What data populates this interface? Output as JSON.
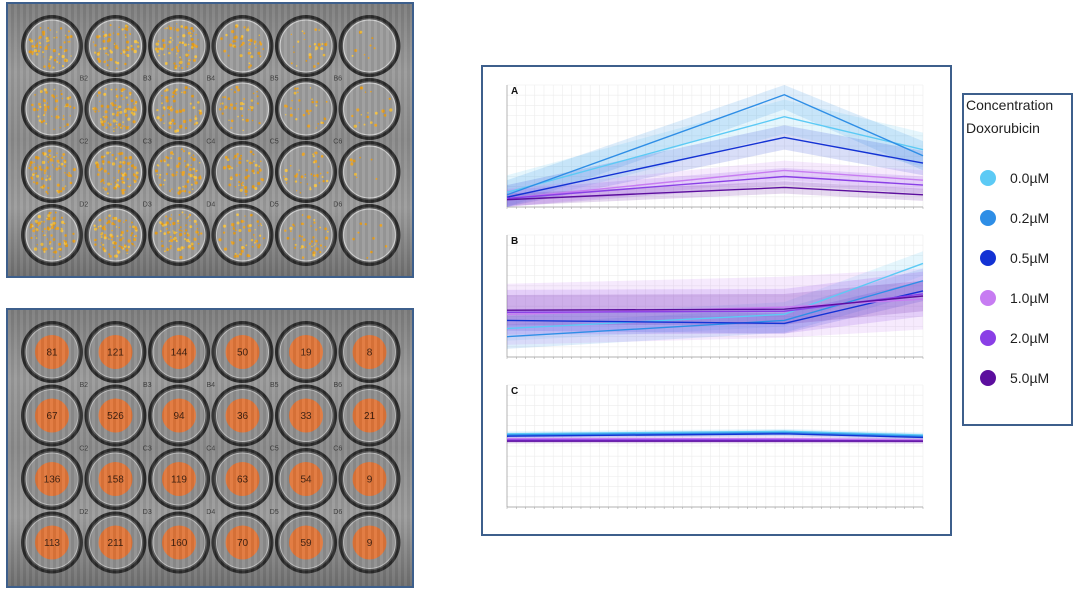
{
  "plates": {
    "top": {
      "name": "overlay",
      "rows": 4,
      "cols": 6,
      "colony_density": [
        [
          0.8,
          0.85,
          0.9,
          0.5,
          0.3,
          0.1
        ],
        [
          0.6,
          1.0,
          0.7,
          0.45,
          0.35,
          0.2
        ],
        [
          0.9,
          0.9,
          0.8,
          0.6,
          0.45,
          0.1
        ],
        [
          0.85,
          0.95,
          0.9,
          0.6,
          0.5,
          0.1
        ]
      ],
      "well_labels": [
        [
          "B2",
          "B3",
          "B4",
          "B5",
          "B6"
        ],
        [
          "C2",
          "C3",
          "C4",
          "C5",
          "C6"
        ],
        [
          "D2",
          "D3",
          "D4",
          "D5",
          "D6"
        ]
      ]
    },
    "bottom": {
      "name": "counts",
      "rows": 4,
      "cols": 6,
      "counts": [
        [
          "81",
          "121",
          "144",
          "50",
          "19",
          "8"
        ],
        [
          "67",
          "526",
          "94",
          "36",
          "33",
          "21"
        ],
        [
          "136",
          "158",
          "119",
          "63",
          "54",
          "9"
        ],
        [
          "113",
          "211",
          "160",
          "70",
          "59",
          "9"
        ]
      ],
      "well_labels": [
        [
          "B2",
          "B3",
          "B4",
          "B5",
          "B6"
        ],
        [
          "C2",
          "C3",
          "C4",
          "C5",
          "C6"
        ],
        [
          "D2",
          "D3",
          "D4",
          "D5",
          "D6"
        ]
      ]
    }
  },
  "legend": {
    "title_line1": "Concentration",
    "title_line2": "Doxorubicin",
    "items": [
      {
        "label": "0.0µM",
        "color": "#5ccaf5"
      },
      {
        "label": "0.2µM",
        "color": "#2e8ee6"
      },
      {
        "label": "0.5µM",
        "color": "#1332d4"
      },
      {
        "label": "1.0µM",
        "color": "#c77cf2"
      },
      {
        "label": "2.0µM",
        "color": "#8a3fe6"
      },
      {
        "label": "5.0µM",
        "color": "#5c0e9e"
      }
    ]
  },
  "chart_data": [
    {
      "type": "line",
      "title": "A",
      "xlabel": "",
      "ylabel": "",
      "x": [
        0,
        30,
        45
      ],
      "xlim": [
        0,
        45
      ],
      "ylim": [
        0,
        1
      ],
      "grid": true,
      "series": [
        {
          "name": "0.0µM",
          "color": "#5ccaf5",
          "values": [
            0.12,
            0.74,
            0.47
          ],
          "band": 0.14
        },
        {
          "name": "0.2µM",
          "color": "#2e8ee6",
          "values": [
            0.1,
            0.92,
            0.42
          ],
          "band": 0.12
        },
        {
          "name": "0.5µM",
          "color": "#1332d4",
          "values": [
            0.08,
            0.57,
            0.36
          ],
          "band": 0.1
        },
        {
          "name": "1.0µM",
          "color": "#c77cf2",
          "values": [
            0.07,
            0.3,
            0.22
          ],
          "band": 0.08
        },
        {
          "name": "2.0µM",
          "color": "#8a3fe6",
          "values": [
            0.07,
            0.25,
            0.18
          ],
          "band": 0.07
        },
        {
          "name": "5.0µM",
          "color": "#5c0e9e",
          "values": [
            0.06,
            0.16,
            0.1
          ],
          "band": 0.05
        }
      ]
    },
    {
      "type": "line",
      "title": "B",
      "xlabel": "",
      "ylabel": "",
      "x": [
        0,
        30,
        45
      ],
      "xlim": [
        0,
        45
      ],
      "ylim": [
        0,
        1.2
      ],
      "grid": true,
      "series": [
        {
          "name": "0.0µM",
          "color": "#5ccaf5",
          "values": [
            0.28,
            0.42,
            0.92
          ],
          "band": 0.12
        },
        {
          "name": "0.2µM",
          "color": "#2e8ee6",
          "values": [
            0.2,
            0.36,
            0.75
          ],
          "band": 0.12
        },
        {
          "name": "0.5µM",
          "color": "#1332d4",
          "values": [
            0.36,
            0.33,
            0.65
          ],
          "band": 0.1
        },
        {
          "name": "1.0µM",
          "color": "#c77cf2",
          "values": [
            0.42,
            0.49,
            0.57
          ],
          "band": 0.3
        },
        {
          "name": "2.0µM",
          "color": "#8a3fe6",
          "values": [
            0.44,
            0.45,
            0.62
          ],
          "band": 0.22
        },
        {
          "name": "5.0µM",
          "color": "#5c0e9e",
          "values": [
            0.46,
            0.47,
            0.6
          ],
          "band": 0.15
        }
      ]
    },
    {
      "type": "line",
      "title": "C",
      "xlabel": "",
      "ylabel": "",
      "x": [
        0,
        30,
        45
      ],
      "xlim": [
        0,
        45
      ],
      "ylim": [
        0,
        1
      ],
      "grid": true,
      "series": [
        {
          "name": "0.0µM",
          "color": "#5ccaf5",
          "values": [
            0.6,
            0.62,
            0.59
          ],
          "band": 0.02
        },
        {
          "name": "0.2µM",
          "color": "#2e8ee6",
          "values": [
            0.59,
            0.61,
            0.58
          ],
          "band": 0.02
        },
        {
          "name": "0.5µM",
          "color": "#1332d4",
          "values": [
            0.58,
            0.6,
            0.57
          ],
          "band": 0.02
        },
        {
          "name": "1.0µM",
          "color": "#c77cf2",
          "values": [
            0.56,
            0.56,
            0.55
          ],
          "band": 0.02
        },
        {
          "name": "2.0µM",
          "color": "#8a3fe6",
          "values": [
            0.55,
            0.55,
            0.54
          ],
          "band": 0.02
        },
        {
          "name": "5.0µM",
          "color": "#5c0e9e",
          "values": [
            0.54,
            0.54,
            0.54
          ],
          "band": 0.02
        }
      ]
    }
  ]
}
